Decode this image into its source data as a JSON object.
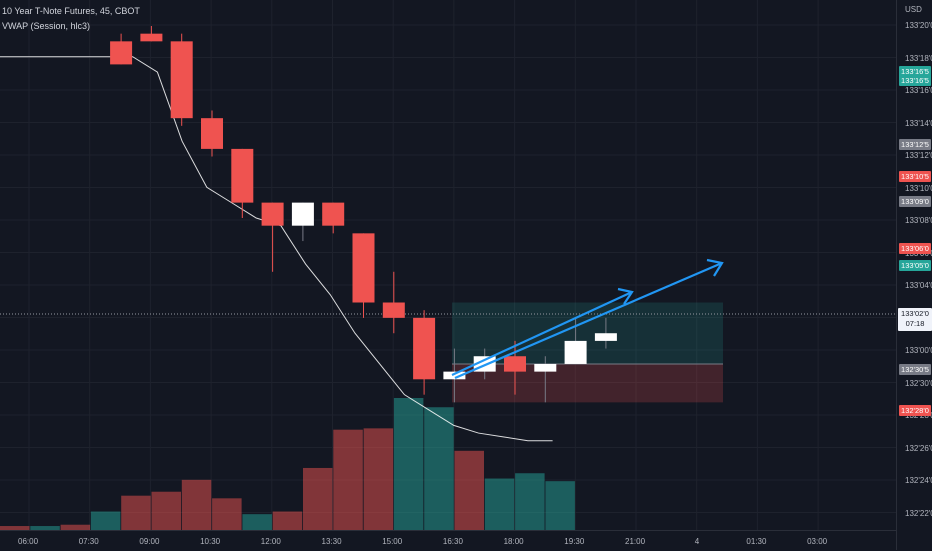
{
  "legend": {
    "symbol": "10 Year T-Note Futures, 45, CBOT",
    "indicator": "VWAP (Session, hlc3)"
  },
  "price_axis": {
    "currency": "USD",
    "ticks": [
      "133'20'0",
      "133'18'0",
      "133'16'0",
      "133'14'0",
      "133'12'0",
      "133'10'0",
      "133'08'0",
      "133'06'0",
      "133'04'0",
      "133'02'0",
      "133'00'0",
      "132'30'0",
      "132'28'0",
      "132'26'0",
      "132'24'0",
      "132'22'0"
    ],
    "tags": [
      {
        "text": "133'16'5",
        "color": "#26a69a"
      },
      {
        "text": "133'16'5",
        "color": "#26a69a"
      },
      {
        "text": "133'12'5",
        "color": "#787b86"
      },
      {
        "text": "133'10'5",
        "color": "#ef5350"
      },
      {
        "text": "133'09'0",
        "color": "#787b86"
      },
      {
        "text": "133'06'0",
        "color": "#ef5350"
      },
      {
        "text": "133'05'0",
        "color": "#26a69a"
      },
      {
        "text": "132'30'5",
        "color": "#787b86"
      },
      {
        "text": "132'28'0",
        "color": "#ef5350"
      }
    ],
    "last_price": "133'02'0",
    "countdown": "07:18"
  },
  "time_axis": {
    "labels": [
      "06:00",
      "07:30",
      "09:00",
      "10:30",
      "12:00",
      "13:30",
      "15:00",
      "16:30",
      "18:00",
      "19:30",
      "21:00",
      "4",
      "01:30",
      "03:00"
    ]
  },
  "colors": {
    "background": "#131722",
    "up": "#ffffff",
    "down": "#ef5350",
    "vol_up": "#26a69a",
    "vol_down": "#ef5350",
    "vwap": "#ffffff",
    "arrow": "#2196f3",
    "target_zone": "#26a69a",
    "stop_zone": "#ef5350"
  },
  "chart_data": {
    "type": "candlestick",
    "interval": "45",
    "candles": [
      {
        "time": "07:30",
        "open": 133.6094,
        "high": 133.625,
        "low": 133.5625,
        "close": 133.5625
      },
      {
        "time": "08:15",
        "open": 133.625,
        "high": 133.6406,
        "low": 133.6094,
        "close": 133.6094
      },
      {
        "time": "09:00",
        "open": 133.6094,
        "high": 133.625,
        "low": 133.4375,
        "close": 133.4531
      },
      {
        "time": "09:45",
        "open": 133.4531,
        "high": 133.4688,
        "low": 133.375,
        "close": 133.3906
      },
      {
        "time": "10:30",
        "open": 133.3906,
        "high": 133.3906,
        "low": 133.25,
        "close": 133.2813
      },
      {
        "time": "11:15",
        "open": 133.2813,
        "high": 133.2813,
        "low": 133.1406,
        "close": 133.2344
      },
      {
        "time": "12:00",
        "open": 133.2344,
        "high": 133.2813,
        "low": 133.2031,
        "close": 133.2813
      },
      {
        "time": "12:45",
        "open": 133.2813,
        "high": 133.2813,
        "low": 133.2188,
        "close": 133.2344
      },
      {
        "time": "13:30",
        "open": 133.2188,
        "high": 133.2188,
        "low": 133.0469,
        "close": 133.0781
      },
      {
        "time": "14:15",
        "open": 133.0781,
        "high": 133.1406,
        "low": 133.0156,
        "close": 133.0469
      },
      {
        "time": "15:00",
        "open": 133.0469,
        "high": 133.0625,
        "low": 132.8906,
        "close": 132.9219
      },
      {
        "time": "15:45",
        "open": 132.9219,
        "high": 132.9844,
        "low": 132.875,
        "close": 132.9375
      },
      {
        "time": "16:30",
        "open": 132.9375,
        "high": 132.9844,
        "low": 132.9219,
        "close": 132.9688
      },
      {
        "time": "17:15",
        "open": 132.9688,
        "high": 133.0,
        "low": 132.8906,
        "close": 132.9375
      },
      {
        "time": "18:00",
        "open": 132.9375,
        "high": 132.9688,
        "low": 132.875,
        "close": 132.9531
      },
      {
        "time": "18:45",
        "open": 132.9531,
        "high": 133.0469,
        "low": 132.9531,
        "close": 133.0
      },
      {
        "time": "19:30",
        "open": 133.0,
        "high": 133.0469,
        "low": 132.9844,
        "close": 133.0156
      }
    ],
    "volume": [
      {
        "time": "05:30",
        "value": 3,
        "up": false
      },
      {
        "time": "06:15",
        "value": 3,
        "up": true
      },
      {
        "time": "07:00",
        "value": 4,
        "up": false
      },
      {
        "time": "07:45",
        "value": 14,
        "up": true
      },
      {
        "time": "08:30",
        "value": 26,
        "up": false
      },
      {
        "time": "09:15",
        "value": 29,
        "up": false
      },
      {
        "time": "10:00",
        "value": 38,
        "up": false
      },
      {
        "time": "10:45",
        "value": 24,
        "up": false
      },
      {
        "time": "11:30",
        "value": 12,
        "up": true
      },
      {
        "time": "12:15",
        "value": 14,
        "up": false
      },
      {
        "time": "13:00",
        "value": 47,
        "up": false
      },
      {
        "time": "13:45",
        "value": 76,
        "up": false
      },
      {
        "time": "14:30",
        "value": 77,
        "up": false
      },
      {
        "time": "15:15",
        "value": 100,
        "up": true
      },
      {
        "time": "16:00",
        "value": 93,
        "up": true
      },
      {
        "time": "16:45",
        "value": 60,
        "up": false
      },
      {
        "time": "17:30",
        "value": 39,
        "up": true
      },
      {
        "time": "18:15",
        "value": 43,
        "up": true
      },
      {
        "time": "19:00",
        "value": 37,
        "up": true
      }
    ],
    "vwap": [
      133.5781,
      133.5781,
      133.5469,
      133.4063,
      133.3125,
      133.2813,
      133.25,
      133.2344,
      133.1563,
      133.0938,
      133.0156,
      132.9531,
      132.8906,
      132.8594,
      132.8281,
      132.8125,
      132.8047,
      132.7969,
      132.7969
    ],
    "long_position": {
      "entry": 132.9531,
      "target": 133.0781,
      "stop": 132.875
    },
    "ylim": [
      132.656,
      133.6406
    ]
  }
}
